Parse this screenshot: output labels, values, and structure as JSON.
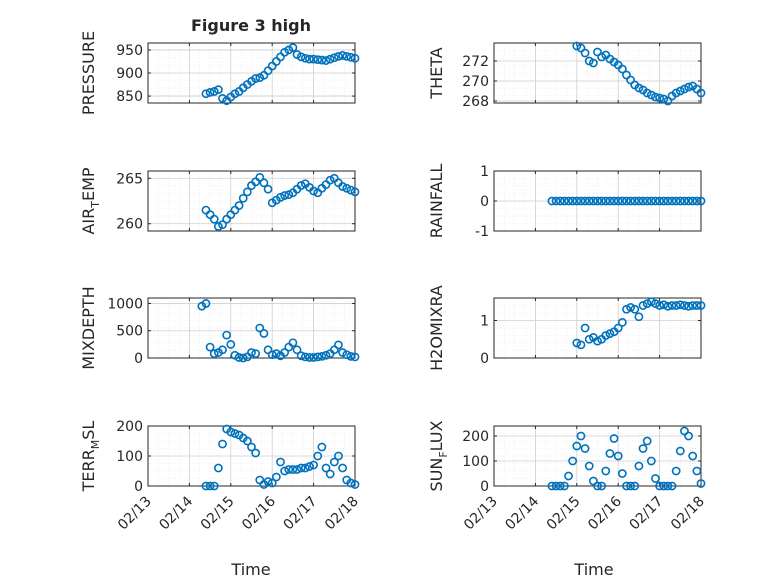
{
  "figure": {
    "title": "Figure 3 high",
    "xlabel": "Time"
  },
  "xticks": [
    "02/13",
    "02/14",
    "02/15",
    "02/16",
    "02/17",
    "02/18"
  ],
  "colors": {
    "marker": "#0072BD",
    "axis": "#262626",
    "grid": "#cfcfcf",
    "minor_grid": "#e6e6e6"
  },
  "chart_data": [
    {
      "type": "scatter",
      "title": "Figure 3 high",
      "ylabel": "PRESSURE",
      "ylabel_sub": "",
      "xlim": [
        0,
        5
      ],
      "ylim": [
        835,
        965
      ],
      "yticks": [
        850,
        900,
        950
      ],
      "yticklabels": [
        "850",
        "900",
        "950"
      ],
      "x": [
        0.0,
        0.1,
        0.2,
        0.3,
        0.4,
        0.5,
        0.6,
        0.7,
        0.8,
        0.9,
        1.0,
        1.1,
        1.2,
        1.3,
        1.4,
        1.5,
        1.6,
        1.7,
        1.8,
        1.9,
        2.0,
        2.1,
        2.2,
        2.3,
        2.4,
        2.5,
        2.6,
        2.7,
        2.8,
        2.9,
        3.0,
        3.1,
        3.2,
        3.3,
        3.4,
        3.5,
        3.6,
        3.7,
        3.8,
        3.9,
        4.0,
        4.1,
        4.2,
        4.3,
        4.4,
        4.5,
        4.6,
        4.7,
        4.8,
        4.9,
        5.0
      ],
      "y": [
        null,
        null,
        null,
        null,
        null,
        null,
        null,
        null,
        null,
        null,
        null,
        null,
        null,
        null,
        855,
        858,
        860,
        864,
        845,
        840,
        848,
        855,
        860,
        868,
        875,
        882,
        888,
        890,
        895,
        905,
        915,
        925,
        935,
        945,
        950,
        955,
        940,
        935,
        932,
        930,
        930,
        929,
        928,
        927,
        930,
        933,
        936,
        938,
        936,
        934,
        932
      ]
    },
    {
      "type": "scatter",
      "title": "",
      "ylabel": "THETA",
      "ylabel_sub": "",
      "xlim": [
        0,
        5
      ],
      "ylim": [
        267.8,
        273.8
      ],
      "yticks": [
        268,
        270,
        272
      ],
      "yticklabels": [
        "268",
        "270",
        "272"
      ],
      "x": [
        2.0,
        2.1,
        2.2,
        2.3,
        2.4,
        2.5,
        2.6,
        2.7,
        2.8,
        2.9,
        3.0,
        3.1,
        3.2,
        3.3,
        3.4,
        3.5,
        3.6,
        3.7,
        3.8,
        3.9,
        4.0,
        4.1,
        4.2,
        4.3,
        4.4,
        4.5,
        4.6,
        4.7,
        4.8,
        4.9,
        5.0
      ],
      "y": [
        273.5,
        273.3,
        272.8,
        272.0,
        271.8,
        272.9,
        272.4,
        272.6,
        272.2,
        271.9,
        271.6,
        271.2,
        270.6,
        270.1,
        269.6,
        269.3,
        269.1,
        268.8,
        268.6,
        268.4,
        268.3,
        268.2,
        268.0,
        268.5,
        268.8,
        269.0,
        269.2,
        269.4,
        269.5,
        269.2,
        268.8
      ]
    },
    {
      "type": "scatter",
      "title": "",
      "ylabel": "AIR",
      "ylabel_sub": "T",
      "ylabel_suffix": "EMP",
      "xlim": [
        0,
        5
      ],
      "ylim": [
        259.2,
        265.8
      ],
      "yticks": [
        260,
        265
      ],
      "yticklabels": [
        "260",
        "265"
      ],
      "x": [
        0.0,
        0.1,
        0.2,
        0.3,
        0.4,
        0.5,
        0.6,
        0.7,
        0.8,
        0.9,
        1.0,
        1.1,
        1.2,
        1.3,
        1.4,
        1.5,
        1.6,
        1.7,
        1.8,
        1.9,
        2.0,
        2.1,
        2.2,
        2.3,
        2.4,
        2.5,
        2.6,
        2.7,
        2.8,
        2.9,
        3.0,
        3.1,
        3.2,
        3.3,
        3.4,
        3.5,
        3.6,
        3.7,
        3.8,
        3.9,
        4.0,
        4.1,
        4.2,
        4.3,
        4.4,
        4.5,
        4.6,
        4.7,
        4.8,
        4.9,
        5.0
      ],
      "y": [
        null,
        null,
        null,
        null,
        null,
        null,
        null,
        null,
        null,
        null,
        null,
        null,
        null,
        null,
        261.5,
        261.0,
        260.5,
        259.7,
        259.9,
        260.5,
        261.0,
        261.5,
        262.0,
        262.8,
        263.5,
        264.2,
        264.6,
        265.1,
        264.5,
        263.8,
        262.3,
        262.6,
        262.9,
        263.1,
        263.2,
        263.4,
        263.8,
        264.2,
        264.4,
        264.0,
        263.6,
        263.4,
        263.9,
        264.3,
        264.8,
        265.0,
        264.5,
        264.1,
        263.9,
        263.7,
        263.5
      ]
    },
    {
      "type": "scatter",
      "title": "",
      "ylabel": "RAINFALL",
      "ylabel_sub": "",
      "xlim": [
        0,
        5
      ],
      "ylim": [
        -1,
        1
      ],
      "yticks": [
        -1,
        0,
        1
      ],
      "yticklabels": [
        "-1",
        "0",
        "1"
      ],
      "x": [
        1.4,
        1.5,
        1.6,
        1.7,
        1.8,
        1.9,
        2.0,
        2.1,
        2.2,
        2.3,
        2.4,
        2.5,
        2.6,
        2.7,
        2.8,
        2.9,
        3.0,
        3.1,
        3.2,
        3.3,
        3.4,
        3.5,
        3.6,
        3.7,
        3.8,
        3.9,
        4.0,
        4.1,
        4.2,
        4.3,
        4.4,
        4.5,
        4.6,
        4.7,
        4.8,
        4.9,
        5.0
      ],
      "y": [
        0,
        0,
        0,
        0,
        0,
        0,
        0,
        0,
        0,
        0,
        0,
        0,
        0,
        0,
        0,
        0,
        0,
        0,
        0,
        0,
        0,
        0,
        0,
        0,
        0,
        0,
        0,
        0,
        0,
        0,
        0,
        0,
        0,
        0,
        0,
        0,
        0
      ]
    },
    {
      "type": "scatter",
      "title": "",
      "ylabel": "MIXDEPTH",
      "ylabel_sub": "",
      "xlim": [
        0,
        5
      ],
      "ylim": [
        0,
        1100
      ],
      "yticks": [
        0,
        500,
        1000
      ],
      "yticklabels": [
        "0",
        "500",
        "1000"
      ],
      "x": [
        1.3,
        1.4,
        1.5,
        1.6,
        1.7,
        1.8,
        1.9,
        2.0,
        2.1,
        2.2,
        2.3,
        2.4,
        2.5,
        2.6,
        2.7,
        2.8,
        2.9,
        3.0,
        3.1,
        3.2,
        3.3,
        3.4,
        3.5,
        3.6,
        3.7,
        3.8,
        3.9,
        4.0,
        4.1,
        4.2,
        4.3,
        4.4,
        4.5,
        4.6,
        4.7,
        4.8,
        4.9,
        5.0
      ],
      "y": [
        950,
        1000,
        200,
        80,
        100,
        150,
        420,
        250,
        50,
        10,
        0,
        20,
        100,
        80,
        550,
        450,
        150,
        60,
        80,
        40,
        100,
        200,
        280,
        150,
        40,
        20,
        10,
        10,
        20,
        30,
        50,
        80,
        150,
        240,
        100,
        60,
        30,
        20
      ]
    },
    {
      "type": "scatter",
      "title": "",
      "ylabel": "H2OMIXRA",
      "ylabel_sub": "",
      "xlim": [
        0,
        5
      ],
      "ylim": [
        0,
        1.6
      ],
      "yticks": [
        0,
        1
      ],
      "yticklabels": [
        "0",
        "1"
      ],
      "x": [
        2.0,
        2.1,
        2.2,
        2.3,
        2.4,
        2.5,
        2.6,
        2.7,
        2.8,
        2.9,
        3.0,
        3.1,
        3.2,
        3.3,
        3.4,
        3.5,
        3.6,
        3.7,
        3.8,
        3.9,
        4.0,
        4.1,
        4.2,
        4.3,
        4.4,
        4.5,
        4.6,
        4.7,
        4.8,
        4.9,
        5.0
      ],
      "y": [
        0.4,
        0.35,
        0.8,
        0.5,
        0.55,
        0.45,
        0.5,
        0.6,
        0.65,
        0.7,
        0.8,
        0.95,
        1.3,
        1.35,
        1.3,
        1.1,
        1.4,
        1.45,
        1.5,
        1.45,
        1.4,
        1.42,
        1.38,
        1.4,
        1.4,
        1.42,
        1.4,
        1.38,
        1.4,
        1.4,
        1.4
      ]
    },
    {
      "type": "scatter",
      "title": "",
      "ylabel": "TERR",
      "ylabel_sub": "M",
      "ylabel_suffix": "SL",
      "xlim": [
        0,
        5
      ],
      "ylim": [
        0,
        200
      ],
      "yticks": [
        0,
        100,
        200
      ],
      "yticklabels": [
        "0",
        "100",
        "200"
      ],
      "x": [
        0.0,
        0.1,
        0.2,
        0.3,
        0.4,
        0.5,
        0.6,
        0.7,
        0.8,
        0.9,
        1.0,
        1.1,
        1.2,
        1.3,
        1.4,
        1.5,
        1.6,
        1.7,
        1.8,
        1.9,
        2.0,
        2.1,
        2.2,
        2.3,
        2.4,
        2.5,
        2.6,
        2.7,
        2.8,
        2.9,
        3.0,
        3.1,
        3.2,
        3.3,
        3.4,
        3.5,
        3.6,
        3.7,
        3.8,
        3.9,
        4.0,
        4.1,
        4.2,
        4.3,
        4.4,
        4.5,
        4.6,
        4.7,
        4.8,
        4.9,
        5.0
      ],
      "y": [
        null,
        null,
        null,
        null,
        null,
        null,
        null,
        null,
        null,
        null,
        null,
        null,
        null,
        null,
        0,
        0,
        0,
        60,
        140,
        190,
        180,
        175,
        170,
        160,
        150,
        130,
        110,
        20,
        5,
        15,
        10,
        30,
        80,
        50,
        55,
        55,
        55,
        60,
        60,
        65,
        70,
        100,
        130,
        60,
        40,
        80,
        100,
        60,
        20,
        10,
        5
      ]
    },
    {
      "type": "scatter",
      "title": "",
      "ylabel": "SUN",
      "ylabel_sub": "F",
      "ylabel_suffix": "LUX",
      "xlim": [
        0,
        5
      ],
      "ylim": [
        0,
        240
      ],
      "yticks": [
        0,
        100,
        200
      ],
      "yticklabels": [
        "0",
        "100",
        "200"
      ],
      "x": [
        1.4,
        1.5,
        1.6,
        1.7,
        1.8,
        1.9,
        2.0,
        2.1,
        2.2,
        2.3,
        2.4,
        2.5,
        2.6,
        2.7,
        2.8,
        2.9,
        3.0,
        3.1,
        3.2,
        3.3,
        3.4,
        3.5,
        3.6,
        3.7,
        3.8,
        3.9,
        4.0,
        4.1,
        4.2,
        4.3,
        4.4,
        4.5,
        4.6,
        4.7,
        4.8,
        4.9,
        5.0
      ],
      "y": [
        0,
        0,
        0,
        0,
        40,
        100,
        160,
        200,
        150,
        80,
        20,
        0,
        0,
        60,
        130,
        190,
        120,
        50,
        0,
        0,
        0,
        80,
        150,
        180,
        100,
        30,
        0,
        0,
        0,
        0,
        60,
        140,
        220,
        200,
        120,
        60,
        10
      ]
    }
  ]
}
